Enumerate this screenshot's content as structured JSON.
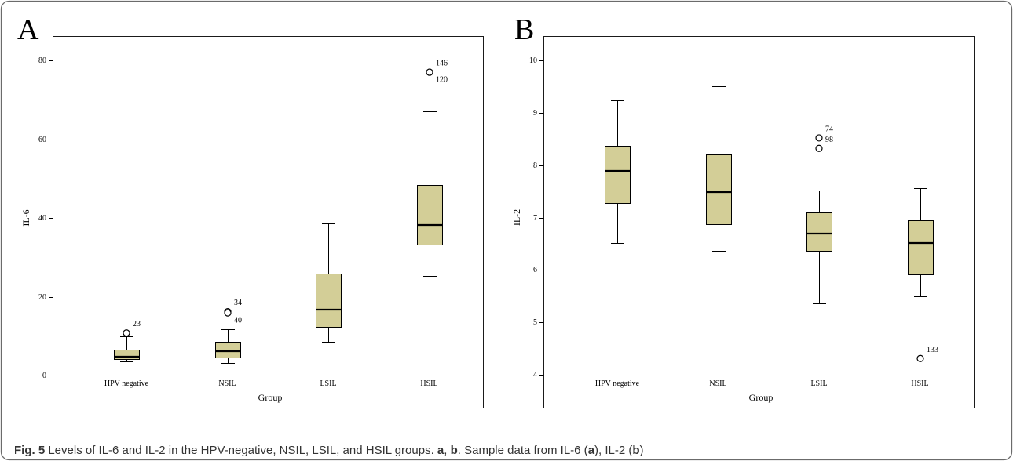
{
  "caption": [
    {
      "text": "Fig. 5",
      "bold": true
    },
    {
      "text": " Levels of IL-6 and IL-2 in the HPV-negative, NSIL, LSIL, and HSIL groups. ",
      "bold": false
    },
    {
      "text": "a",
      "bold": true
    },
    {
      "text": ", ",
      "bold": false
    },
    {
      "text": "b",
      "bold": true
    },
    {
      "text": ". Sample data from IL-6 (",
      "bold": false
    },
    {
      "text": "a",
      "bold": true
    },
    {
      "text": "), IL-2 (",
      "bold": false
    },
    {
      "text": "b",
      "bold": true
    },
    {
      "text": ")",
      "bold": false
    }
  ],
  "colors": {
    "box_fill": "#D3CE97",
    "border": "#6b6b6b",
    "caption_text": "#333333"
  },
  "chart_data": [
    {
      "type": "box",
      "panel_label": "A",
      "xlabel": "Group",
      "ylabel": "IL-6",
      "categories": [
        "HPV negative",
        "NSIL",
        "LSIL",
        "HSIL"
      ],
      "yticks": [
        0,
        20,
        40,
        60,
        80
      ],
      "ylim": [
        0,
        80
      ],
      "grid": false,
      "boxes": [
        {
          "whisker_low": 3.6,
          "q1": 4.2,
          "median": 4.8,
          "q3": 6.5,
          "whisker_high": 10.0,
          "outliers": [
            {
              "value": 10.8,
              "case": "23"
            }
          ]
        },
        {
          "whisker_low": 3.2,
          "q1": 4.5,
          "median": 6.2,
          "q3": 8.5,
          "whisker_high": 11.7,
          "outliers": [
            {
              "value": 16.2,
              "case": "34"
            },
            {
              "value": 15.9,
              "case": "40"
            }
          ]
        },
        {
          "whisker_low": 8.5,
          "q1": 12.4,
          "median": 16.7,
          "q3": 25.9,
          "whisker_high": 38.6,
          "outliers": []
        },
        {
          "whisker_low": 25.3,
          "q1": 33.3,
          "median": 38.3,
          "q3": 48.3,
          "whisker_high": 67.1,
          "outliers": [
            {
              "value": 77.0,
              "case": "146"
            },
            {
              "value": 77.0,
              "case": "120"
            }
          ]
        }
      ]
    },
    {
      "type": "box",
      "panel_label": "B",
      "xlabel": "Group",
      "ylabel": "IL-2",
      "categories": [
        "HPV negative",
        "NSIL",
        "LSIL",
        "HSIL"
      ],
      "yticks": [
        4,
        5,
        6,
        7,
        8,
        9,
        10
      ],
      "ylim": [
        4,
        10
      ],
      "grid": false,
      "boxes": [
        {
          "whisker_low": 6.52,
          "q1": 7.28,
          "median": 7.89,
          "q3": 8.37,
          "whisker_high": 9.23,
          "outliers": []
        },
        {
          "whisker_low": 6.36,
          "q1": 6.88,
          "median": 7.48,
          "q3": 8.21,
          "whisker_high": 9.51,
          "outliers": []
        },
        {
          "whisker_low": 5.36,
          "q1": 6.37,
          "median": 6.7,
          "q3": 7.09,
          "whisker_high": 7.51,
          "outliers": [
            {
              "value": 8.52,
              "case": "74"
            },
            {
              "value": 8.32,
              "case": "98"
            }
          ]
        },
        {
          "whisker_low": 5.49,
          "q1": 5.91,
          "median": 6.52,
          "q3": 6.95,
          "whisker_high": 7.56,
          "outliers": [
            {
              "value": 4.31,
              "case": "133"
            }
          ]
        }
      ]
    }
  ]
}
